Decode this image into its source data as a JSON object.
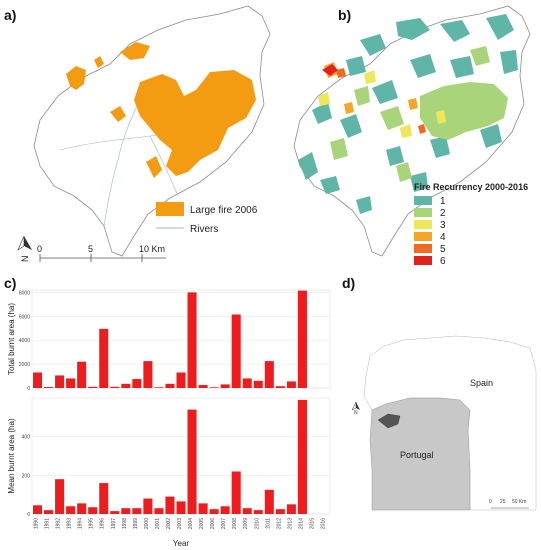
{
  "panels": {
    "a": "a)",
    "b": "b)",
    "c": "c)",
    "d": "d)"
  },
  "map_a": {
    "legend": {
      "fire_label": "Large fire 2006",
      "rivers_label": "Rivers",
      "fire_color": "#f39c12",
      "river_color": "#9fb7bf"
    },
    "scale": {
      "ticks": [
        "0",
        "5",
        "10 Km"
      ]
    },
    "north": "N"
  },
  "map_b": {
    "legend_title": "Fire Recurrency 2000-2016",
    "classes": [
      {
        "label": "1",
        "color": "#5fb5a8"
      },
      {
        "label": "2",
        "color": "#a9d47a"
      },
      {
        "label": "3",
        "color": "#ece85a"
      },
      {
        "label": "4",
        "color": "#f5a623"
      },
      {
        "label": "5",
        "color": "#f06a21"
      },
      {
        "label": "6",
        "color": "#e3211c"
      }
    ]
  },
  "map_d": {
    "labels": {
      "spain": "Spain",
      "portugal": "Portugal"
    },
    "scale": {
      "ticks": [
        "0",
        "25",
        "50 Km"
      ]
    },
    "north": "N"
  },
  "chart_data": [
    {
      "type": "bar",
      "ylabel": "Total burnt area (ha)",
      "ylim": [
        0,
        8200
      ],
      "yticks": [
        "0",
        "2000",
        "4000",
        "6000",
        "8000"
      ],
      "categories": [
        "1990",
        "1991",
        "1992",
        "1993",
        "1994",
        "1995",
        "1996",
        "1997",
        "1998",
        "1999",
        "2000",
        "2001",
        "2002",
        "2003",
        "2004",
        "2005",
        "2006",
        "2007",
        "2008",
        "2009",
        "2010",
        "2011",
        "2012",
        "2013",
        "2014",
        "2015",
        "2016"
      ],
      "values": [
        1300,
        80,
        1050,
        800,
        2200,
        100,
        4950,
        100,
        350,
        750,
        2250,
        60,
        350,
        1300,
        8000,
        250,
        60,
        300,
        6150,
        800,
        600,
        2250,
        150,
        550,
        8150,
        0,
        0
      ],
      "bar_color": "#ee1c1c"
    },
    {
      "type": "bar",
      "ylabel": "Mean burnt area (ha)",
      "xlabel": "Year",
      "ylim": [
        0,
        600
      ],
      "yticks": [
        "0",
        "200",
        "400"
      ],
      "categories": [
        "1990",
        "1991",
        "1992",
        "1993",
        "1994",
        "1995",
        "1996",
        "1997",
        "1998",
        "1999",
        "2000",
        "2001",
        "2002",
        "2003",
        "2004",
        "2005",
        "2006",
        "2007",
        "2008",
        "2009",
        "2010",
        "2011",
        "2012",
        "2013",
        "2014",
        "2015",
        "2016"
      ],
      "values": [
        45,
        20,
        180,
        40,
        55,
        35,
        160,
        15,
        30,
        30,
        80,
        30,
        90,
        65,
        540,
        55,
        25,
        40,
        220,
        30,
        20,
        125,
        25,
        50,
        590,
        0,
        0
      ],
      "bar_color": "#ee1c1c"
    }
  ]
}
